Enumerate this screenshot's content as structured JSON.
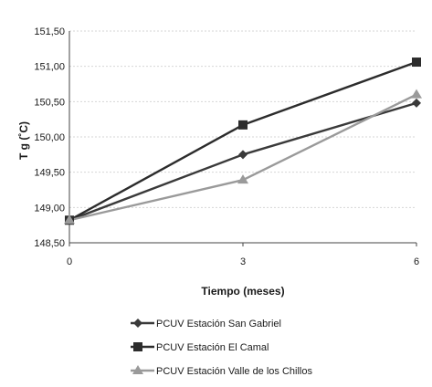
{
  "chart_data": {
    "type": "line",
    "title": "",
    "xlabel": "Tiempo (meses)",
    "ylabel": "T g  (˚C)",
    "x": [
      0,
      3,
      6
    ],
    "xlim": [
      0,
      6
    ],
    "ylim": [
      148.5,
      151.5
    ],
    "x_ticks": [
      "0",
      "3",
      "6"
    ],
    "y_ticks": [
      "148,50",
      "149,00",
      "149,50",
      "150,00",
      "150,50",
      "151,00",
      "151,50"
    ],
    "grid": true,
    "legend_position": "bottom",
    "series": [
      {
        "name": "PCUV Estación San Gabriel",
        "values": [
          148.82,
          149.75,
          150.48
        ],
        "color": "#3a3a3a",
        "marker": "diamond"
      },
      {
        "name": "PCUV Estación El Camal",
        "values": [
          148.82,
          150.17,
          151.06
        ],
        "color": "#2c2c2c",
        "marker": "square"
      },
      {
        "name": "PCUV Estación Valle de los Chillos",
        "values": [
          148.82,
          149.39,
          150.6
        ],
        "color": "#9a9a9a",
        "marker": "triangle"
      }
    ]
  }
}
